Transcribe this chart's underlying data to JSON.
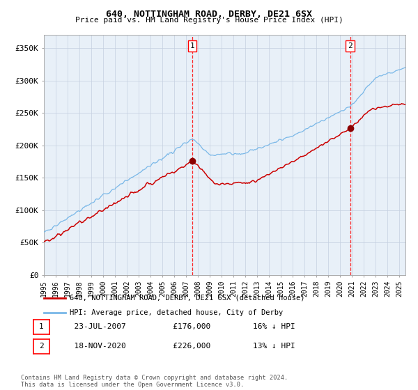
{
  "title": "640, NOTTINGHAM ROAD, DERBY, DE21 6SX",
  "subtitle": "Price paid vs. HM Land Registry's House Price Index (HPI)",
  "hpi_color": "#7ab8e8",
  "price_color": "#cc0000",
  "plot_bg": "#e8f0f8",
  "ylim": [
    0,
    370000
  ],
  "yticks": [
    0,
    50000,
    100000,
    150000,
    200000,
    250000,
    300000,
    350000
  ],
  "legend_entries": [
    "640, NOTTINGHAM ROAD, DERBY, DE21 6SX (detached house)",
    "HPI: Average price, detached house, City of Derby"
  ],
  "sale1_x": 2007.54,
  "sale1_price": 176000,
  "sale1_hpi": 209524,
  "sale2_x": 2020.87,
  "sale2_price": 226000,
  "sale2_hpi": 259770,
  "annotation1": [
    "1",
    "23-JUL-2007",
    "£176,000",
    "16% ↓ HPI"
  ],
  "annotation2": [
    "2",
    "18-NOV-2020",
    "£226,000",
    "13% ↓ HPI"
  ],
  "footer": "Contains HM Land Registry data © Crown copyright and database right 2024.\nThis data is licensed under the Open Government Licence v3.0.",
  "xstart": 1995.0,
  "xend": 2025.5
}
